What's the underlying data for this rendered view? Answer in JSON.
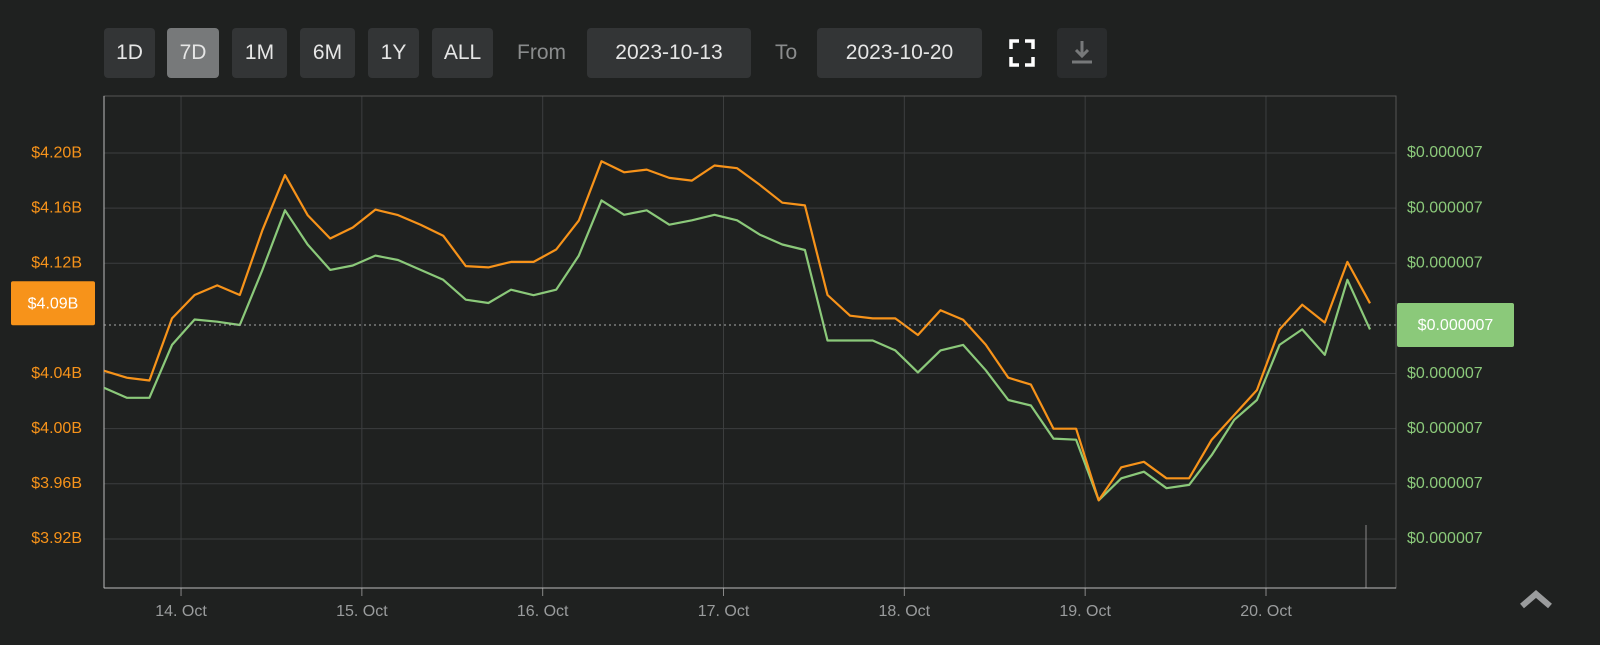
{
  "toolbar": {
    "ranges": [
      "1D",
      "7D",
      "1M",
      "6M",
      "1Y",
      "ALL"
    ],
    "active_range": 1,
    "from_label": "From",
    "from": "2023-10-13",
    "to_label": "To",
    "to": "2023-10-20"
  },
  "chart_data": {
    "type": "line",
    "x": [
      13.575,
      13.7,
      13.825,
      13.95,
      14.075,
      14.2,
      14.325,
      14.45,
      14.575,
      14.7,
      14.825,
      14.95,
      15.075,
      15.2,
      15.325,
      15.45,
      15.575,
      15.7,
      15.825,
      15.95,
      16.075,
      16.2,
      16.325,
      16.45,
      16.575,
      16.7,
      16.825,
      16.95,
      17.075,
      17.2,
      17.325,
      17.45,
      17.575,
      17.7,
      17.825,
      17.95,
      18.075,
      18.2,
      18.325,
      18.45,
      18.575,
      18.7,
      18.825,
      18.95,
      19.075,
      19.2,
      19.325,
      19.45,
      19.575,
      19.7,
      19.825,
      19.95,
      20.075,
      20.2,
      20.325,
      20.45,
      20.575
    ],
    "xlim": [
      13.574,
      20.719
    ],
    "xticks": [
      {
        "value": 14,
        "label": "14. Oct"
      },
      {
        "value": 15,
        "label": "15. Oct"
      },
      {
        "value": 16,
        "label": "16. Oct"
      },
      {
        "value": 17,
        "label": "17. Oct"
      },
      {
        "value": 18,
        "label": "18. Oct"
      },
      {
        "value": 19,
        "label": "19. Oct"
      },
      {
        "value": 20,
        "label": "20. Oct"
      }
    ],
    "ylim": [
      3.8844,
      4.2414
    ],
    "yticks": [
      {
        "value": 4.2,
        "label": "$4.20B"
      },
      {
        "value": 4.16,
        "label": "$4.16B"
      },
      {
        "value": 4.12,
        "label": "$4.12B"
      },
      {
        "value": 4.04,
        "label": "$4.04B"
      },
      {
        "value": 4.0,
        "label": "$4.00B"
      },
      {
        "value": 3.96,
        "label": "$3.96B"
      },
      {
        "value": 3.92,
        "label": "$3.92B"
      }
    ],
    "y2lim": [
      6.7655e-06,
      7.2117e-06
    ],
    "y2ticks": [
      {
        "value": 7.16e-06,
        "label": "$0.000007"
      },
      {
        "value": 7.11e-06,
        "label": "$0.000007"
      },
      {
        "value": 7.06e-06,
        "label": "$0.000007"
      },
      {
        "value": 6.96e-06,
        "label": "$0.000007"
      },
      {
        "value": 6.91e-06,
        "label": "$0.000007"
      },
      {
        "value": 6.86e-06,
        "label": "$0.000007"
      },
      {
        "value": 6.81e-06,
        "label": "$0.000007"
      }
    ],
    "grid": true,
    "series": [
      {
        "color": "#f7931a",
        "values": [
          4.042,
          4.037,
          4.035,
          4.08,
          4.097,
          4.104,
          4.097,
          4.144,
          4.184,
          4.155,
          4.138,
          4.146,
          4.159,
          4.155,
          4.148,
          4.14,
          4.118,
          4.117,
          4.121,
          4.121,
          4.13,
          4.151,
          4.194,
          4.186,
          4.188,
          4.182,
          4.18,
          4.191,
          4.189,
          4.177,
          4.164,
          4.162,
          4.097,
          4.082,
          4.08,
          4.08,
          4.068,
          4.086,
          4.079,
          4.061,
          4.037,
          4.032,
          4.0,
          4.0,
          3.948,
          3.972,
          3.976,
          3.964,
          3.964,
          3.992,
          4.01,
          4.028,
          4.072,
          4.09,
          4.077,
          4.121,
          4.091
        ]
      },
      {
        "color": "#8bc97a",
        "axis": "y2",
        "values": [
          6.947e-06,
          6.938e-06,
          6.938e-06,
          6.986e-06,
          7.009e-06,
          7.007e-06,
          7.004e-06,
          7.054e-06,
          7.108e-06,
          7.077e-06,
          7.054e-06,
          7.058e-06,
          7.067e-06,
          7.063e-06,
          7.054e-06,
          7.045e-06,
          7.027e-06,
          7.024e-06,
          7.036e-06,
          7.031e-06,
          7.036e-06,
          7.067e-06,
          7.117e-06,
          7.104e-06,
          7.108e-06,
          7.095e-06,
          7.099e-06,
          7.104e-06,
          7.099e-06,
          7.086e-06,
          7.077e-06,
          7.072e-06,
          6.99e-06,
          6.99e-06,
          6.99e-06,
          6.981e-06,
          6.961e-06,
          6.981e-06,
          6.986e-06,
          6.963e-06,
          6.936e-06,
          6.931e-06,
          6.901e-06,
          6.9e-06,
          6.845e-06,
          6.865e-06,
          6.871e-06,
          6.856e-06,
          6.859e-06,
          6.886e-06,
          6.918e-06,
          6.936e-06,
          6.986e-06,
          7e-06,
          6.977e-06,
          7.045e-06,
          7e-06
        ]
      }
    ],
    "annotations": [
      {
        "label": "$4.09B",
        "value": 4.091,
        "color": "#f7931a"
      },
      {
        "label": "$0.000007",
        "value": 7.004e-06,
        "axis": "y2",
        "color": "#8bc97a"
      }
    ]
  }
}
